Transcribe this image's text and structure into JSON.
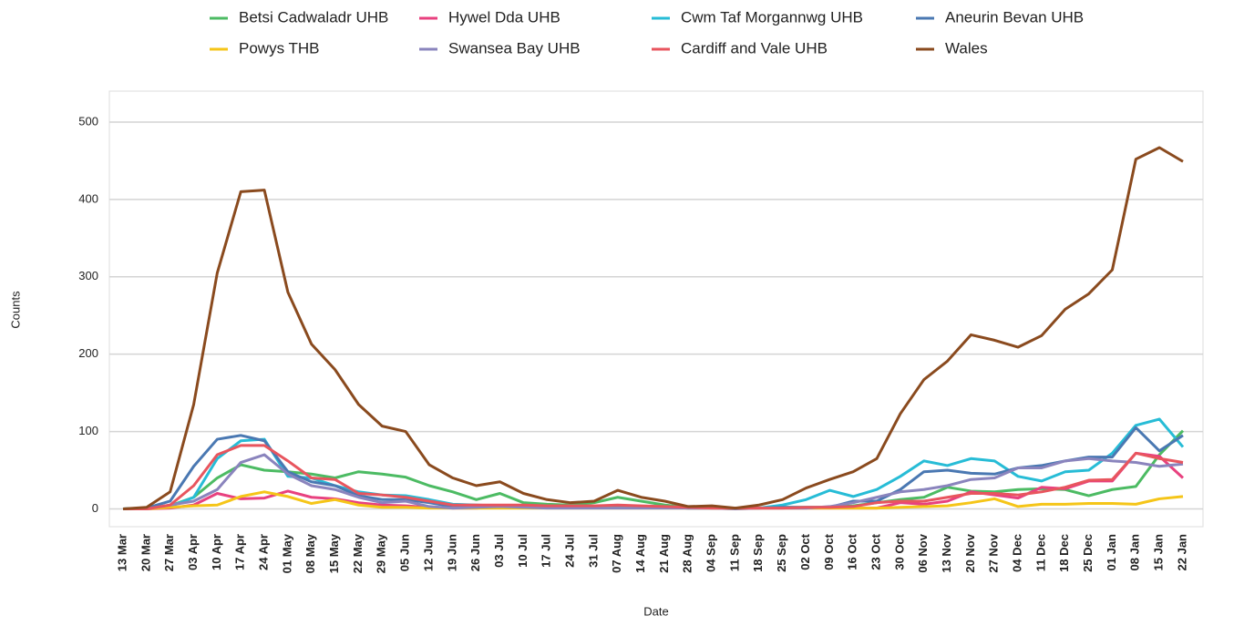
{
  "chart_data": {
    "type": "line",
    "x_label": "Date",
    "y_label": "Counts",
    "categories": [
      "13 Mar",
      "20 Mar",
      "27 Mar",
      "03 Apr",
      "10 Apr",
      "17 Apr",
      "24 Apr",
      "01 May",
      "08 May",
      "15 May",
      "22 May",
      "29 May",
      "05 Jun",
      "12 Jun",
      "19 Jun",
      "26 Jun",
      "03 Jul",
      "10 Jul",
      "17 Jul",
      "24 Jul",
      "31 Jul",
      "07 Aug",
      "14 Aug",
      "21 Aug",
      "28 Aug",
      "04 Sep",
      "11 Sep",
      "18 Sep",
      "25 Sep",
      "02 Oct",
      "09 Oct",
      "16 Oct",
      "23 Oct",
      "30 Oct",
      "06 Nov",
      "13 Nov",
      "20 Nov",
      "27 Nov",
      "04 Dec",
      "11 Dec",
      "18 Dec",
      "25 Dec",
      "01 Jan",
      "08 Jan",
      "15 Jan",
      "22 Jan"
    ],
    "series": [
      {
        "name": "Betsi Cadwaladr UHB",
        "color": "#4cbb63",
        "values": [
          0,
          1,
          4,
          15,
          40,
          57,
          50,
          48,
          45,
          40,
          48,
          45,
          41,
          30,
          22,
          12,
          20,
          8,
          6,
          5,
          8,
          15,
          10,
          5,
          2,
          1,
          1,
          1,
          2,
          2,
          2,
          4,
          8,
          12,
          15,
          28,
          23,
          22,
          25,
          26,
          25,
          17,
          25,
          29,
          70,
          101
        ]
      },
      {
        "name": "Hywel Dda UHB",
        "color": "#e8417f",
        "values": [
          0,
          0,
          1,
          5,
          20,
          13,
          14,
          23,
          15,
          13,
          8,
          5,
          4,
          2,
          1,
          1,
          2,
          2,
          2,
          2,
          2,
          2,
          2,
          2,
          1,
          1,
          1,
          1,
          1,
          1,
          1,
          1,
          1,
          8,
          6,
          10,
          22,
          18,
          14,
          28,
          26,
          36,
          36,
          72,
          68,
          40
        ]
      },
      {
        "name": "Cwm Taf Morgannwg UHB",
        "color": "#27bcd6",
        "values": [
          0,
          1,
          3,
          15,
          65,
          88,
          90,
          42,
          40,
          30,
          22,
          18,
          17,
          12,
          6,
          5,
          4,
          3,
          2,
          2,
          2,
          3,
          2,
          2,
          1,
          1,
          1,
          1,
          5,
          12,
          24,
          16,
          25,
          42,
          62,
          56,
          65,
          62,
          42,
          36,
          48,
          50,
          72,
          108,
          116,
          80
        ]
      },
      {
        "name": "Aneurin Bevan UHB",
        "color": "#4a78b2",
        "values": [
          0,
          1,
          10,
          55,
          90,
          95,
          88,
          48,
          35,
          30,
          17,
          12,
          12,
          8,
          3,
          4,
          4,
          3,
          2,
          2,
          2,
          2,
          2,
          2,
          1,
          1,
          1,
          1,
          2,
          2,
          2,
          10,
          10,
          25,
          48,
          50,
          46,
          45,
          53,
          56,
          62,
          67,
          67,
          105,
          75,
          95
        ]
      },
      {
        "name": "Powys THB",
        "color": "#f5c518",
        "values": [
          0,
          0,
          2,
          4,
          5,
          16,
          22,
          16,
          7,
          12,
          5,
          2,
          2,
          1,
          1,
          1,
          1,
          1,
          1,
          1,
          1,
          1,
          1,
          1,
          1,
          1,
          0,
          1,
          1,
          1,
          1,
          1,
          1,
          2,
          3,
          4,
          8,
          13,
          3,
          6,
          6,
          7,
          7,
          6,
          13,
          16
        ]
      },
      {
        "name": "Swansea Bay UHB",
        "color": "#8a84bd",
        "values": [
          0,
          0,
          5,
          10,
          25,
          60,
          70,
          45,
          30,
          25,
          15,
          8,
          10,
          3,
          1,
          2,
          3,
          2,
          1,
          1,
          1,
          1,
          1,
          1,
          1,
          1,
          0,
          1,
          1,
          1,
          3,
          8,
          15,
          22,
          25,
          30,
          38,
          40,
          53,
          53,
          62,
          65,
          62,
          60,
          55,
          58
        ]
      },
      {
        "name": "Cardiff and Vale UHB",
        "color": "#e8555e",
        "values": [
          0,
          0,
          5,
          30,
          70,
          82,
          82,
          62,
          40,
          38,
          20,
          18,
          15,
          10,
          5,
          5,
          5,
          5,
          4,
          4,
          4,
          5,
          4,
          3,
          2,
          1,
          1,
          1,
          1,
          2,
          2,
          3,
          8,
          10,
          10,
          15,
          20,
          20,
          18,
          22,
          28,
          37,
          38,
          72,
          65,
          60
        ]
      },
      {
        "name": "Wales",
        "color": "#8a4a1e",
        "values": [
          0,
          2,
          22,
          135,
          305,
          410,
          412,
          280,
          213,
          180,
          135,
          107,
          100,
          57,
          40,
          30,
          35,
          20,
          12,
          8,
          10,
          24,
          15,
          10,
          3,
          4,
          1,
          5,
          12,
          27,
          38,
          48,
          65,
          123,
          167,
          191,
          225,
          218,
          209,
          224,
          258,
          278,
          309,
          452,
          467,
          449
        ]
      }
    ],
    "ylim": [
      -23,
      540
    ],
    "yticks": [
      0,
      100,
      200,
      300,
      400,
      500
    ],
    "grid": true
  }
}
